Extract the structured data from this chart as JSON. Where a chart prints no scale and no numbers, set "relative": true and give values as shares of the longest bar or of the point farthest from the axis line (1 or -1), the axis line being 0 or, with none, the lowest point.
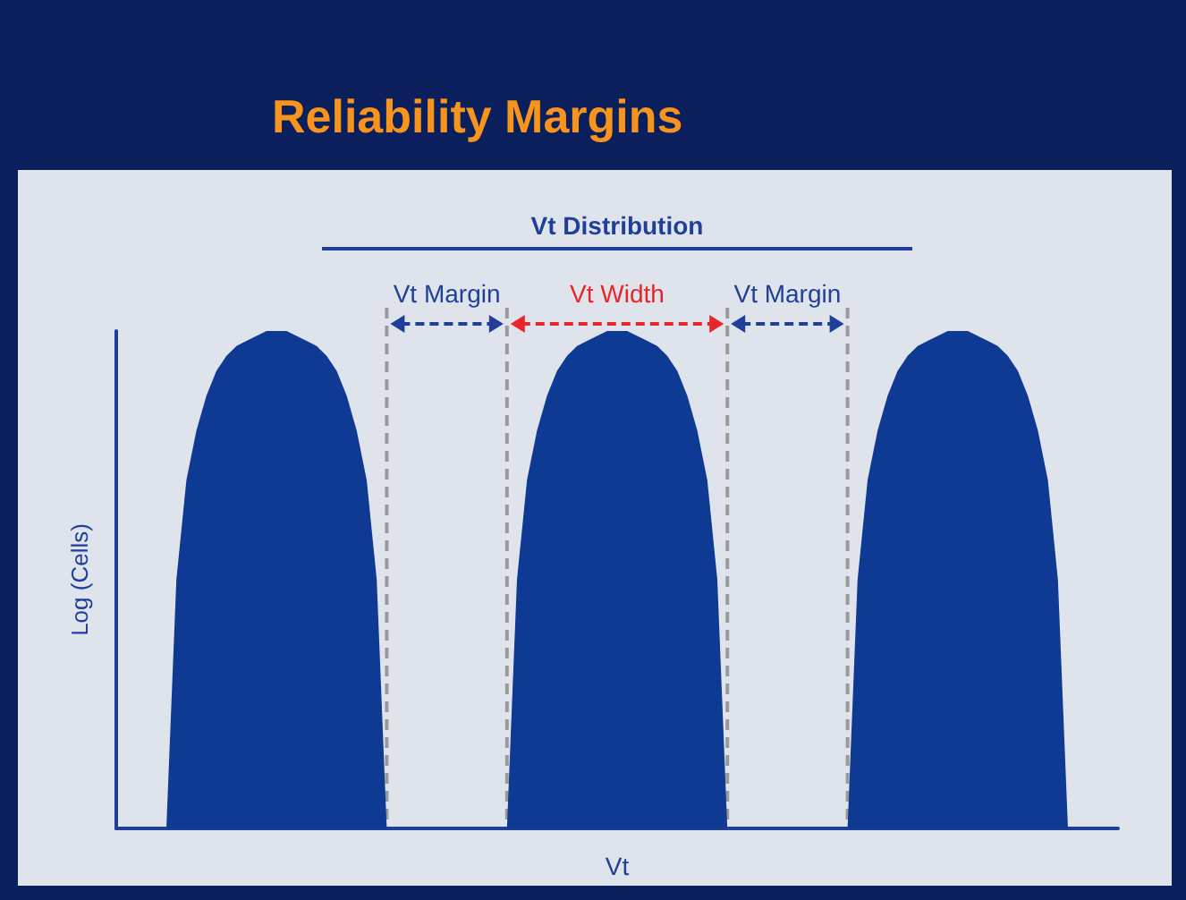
{
  "chart_data": {
    "type": "area",
    "relative": true,
    "title": "Reliability Margins",
    "xlabel": "Vt",
    "ylabel": "Log (Cells)",
    "grid": "x",
    "categories": [
      null,
      null,
      null,
      null,
      null,
      null,
      null,
      null,
      null,
      null,
      null,
      null,
      null,
      null,
      null,
      null,
      null,
      null,
      null,
      null,
      null,
      null,
      null,
      null,
      null,
      null,
      null,
      null,
      null,
      null,
      null,
      null,
      null,
      null,
      null,
      null,
      null,
      null,
      null,
      null,
      null,
      null,
      null,
      null,
      null,
      null,
      null,
      null,
      null,
      null,
      null,
      null,
      null,
      null,
      null,
      null,
      null,
      null,
      null,
      null,
      null,
      null,
      null,
      null,
      null,
      null,
      null,
      null,
      null,
      null,
      null,
      null,
      null,
      null,
      null,
      null,
      null,
      null,
      null,
      null,
      null,
      null,
      null,
      null,
      null,
      null,
      null,
      null,
      null,
      null,
      null,
      null,
      null,
      null,
      null,
      null,
      null,
      null,
      null,
      null,
      null
    ],
    "series": [
      {
        "color": "#0f3a94",
        "values": [
          0,
          0,
          0,
          0,
          0,
          0,
          0.5,
          0.7,
          0.8,
          0.87,
          0.92,
          0.95,
          0.97,
          0.98,
          0.99,
          1,
          1,
          1,
          0.99,
          0.98,
          0.97,
          0.95,
          0.92,
          0.87,
          0.8,
          0.7,
          0.5,
          0,
          0,
          0,
          0,
          0,
          0,
          0,
          0,
          0,
          0,
          0,
          0,
          0,
          0.5,
          0.7,
          0.8,
          0.87,
          0.92,
          0.95,
          0.97,
          0.98,
          0.99,
          1,
          1,
          1,
          0.99,
          0.98,
          0.97,
          0.95,
          0.92,
          0.87,
          0.8,
          0.7,
          0.5,
          0,
          0,
          0,
          0,
          0,
          0,
          0,
          0,
          0,
          0,
          0,
          0,
          0,
          0.5,
          0.7,
          0.8,
          0.87,
          0.92,
          0.95,
          0.97,
          0.98,
          0.99,
          1,
          1,
          1,
          0.99,
          0.98,
          0.97,
          0.95,
          0.92,
          0.87,
          0.8,
          0.7,
          0.5,
          0,
          0,
          0,
          0,
          0,
          0
        ]
      }
    ],
    "annotations": [
      "Vt Distribution",
      "Vt Margin",
      "Vt Width",
      "Vt Margin"
    ]
  }
}
